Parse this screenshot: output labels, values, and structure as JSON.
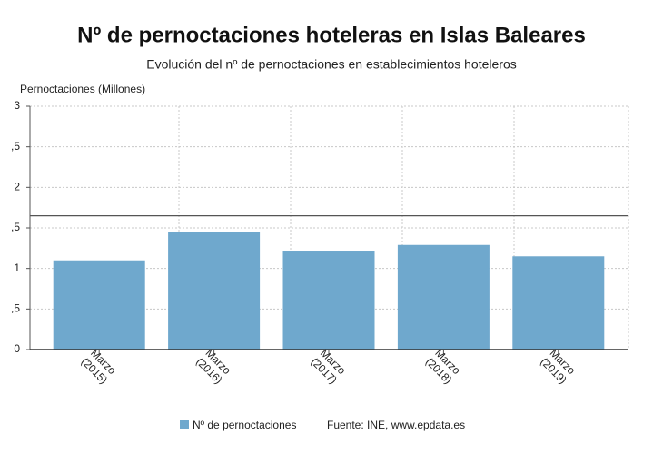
{
  "chart_data": {
    "type": "bar",
    "title": "Nº de pernoctaciones hoteleras en Islas Baleares",
    "subtitle": "Evolución del nº de pernoctaciones en establecimientos hoteleros",
    "y_label": "Pernoctaciones (Millones)",
    "categories": [
      [
        "Marzo",
        "(2015)"
      ],
      [
        "Marzo",
        "(2016)"
      ],
      [
        "Marzo",
        "(2017)"
      ],
      [
        "Marzo",
        "(2018)"
      ],
      [
        "Marzo",
        "(2019)"
      ]
    ],
    "series": [
      {
        "name": "Nº de pernoctaciones",
        "color": "#6fa8cd",
        "values": [
          1.1,
          1.45,
          1.22,
          1.29,
          1.15
        ]
      }
    ],
    "reference_line": 1.65,
    "ylim": [
      0,
      3
    ],
    "yticks": [
      0,
      {
        "value": 0.5,
        "label": ",5"
      },
      1,
      {
        "value": 1.5,
        "label": ",5"
      },
      2,
      {
        "value": 2.5,
        "label": ",5"
      },
      3
    ],
    "grid": true,
    "source": "Fuente: INE, www.epdata.es"
  }
}
